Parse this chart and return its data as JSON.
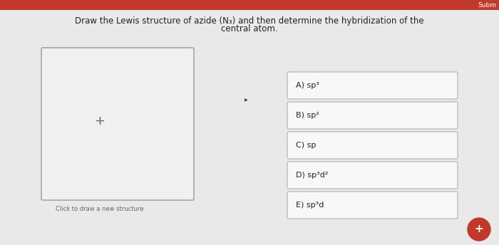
{
  "bg_color": "#e9e9e9",
  "header_color": "#c0392b",
  "header_text": "Subm",
  "title_line1": "Draw the Lewis structure of azide (N₃) and then determine the hybridization of the",
  "title_line2": "central atom.",
  "draw_box_label": "Click to draw a new structure",
  "plus_symbol": "+",
  "options": [
    "A) sp³",
    "B) sp²",
    "C) sp",
    "D) sp³d²",
    "E) sp³d"
  ],
  "box_bg": "#f8f8f8",
  "box_border": "#b0b0b0",
  "title_fontsize": 8.5,
  "option_fontsize": 8,
  "draw_box_color": "#f0f0f0",
  "draw_box_border": "#999999",
  "fab_color": "#c0392b",
  "fab_text": "+"
}
